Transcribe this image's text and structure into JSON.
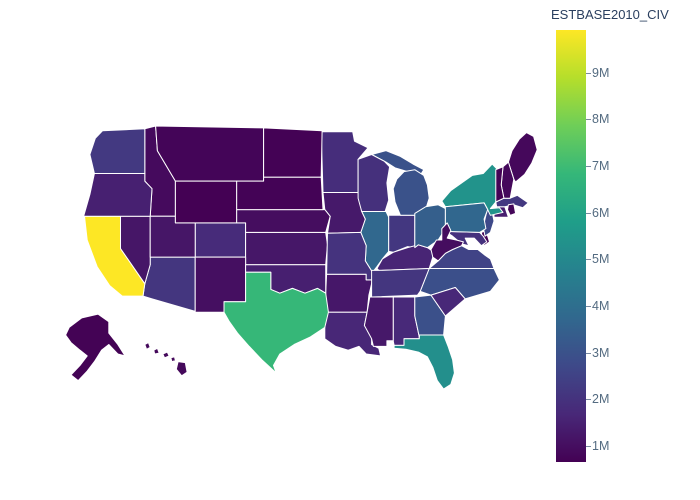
{
  "page": {
    "background": "#ffffff"
  },
  "chart_data": {
    "type": "choropleth",
    "title": "ESTBASE2010_CIV",
    "region": "USA states (albers-usa style layout, Alaska and Hawaii insets bottom-left)",
    "unit": "M",
    "zmin": 0.66,
    "zmax": 9.91,
    "colorscale_name": "Viridis",
    "colorscale": [
      [
        "0",
        "#440154"
      ],
      [
        "0.111",
        "#482878"
      ],
      [
        "0.222",
        "#3e4989"
      ],
      [
        "0.333",
        "#31688e"
      ],
      [
        "0.444",
        "#26828e"
      ],
      [
        "0.556",
        "#1f9e89"
      ],
      [
        "0.667",
        "#35b779"
      ],
      [
        "0.778",
        "#6ece58"
      ],
      [
        "0.889",
        "#b5de2b"
      ],
      [
        "1",
        "#fde725"
      ]
    ],
    "colorbar": {
      "ticks": [
        {
          "label": "1M",
          "value": 1
        },
        {
          "label": "2M",
          "value": 2
        },
        {
          "label": "3M",
          "value": 3
        },
        {
          "label": "4M",
          "value": 4
        },
        {
          "label": "5M",
          "value": 5
        },
        {
          "label": "6M",
          "value": 6
        },
        {
          "label": "7M",
          "value": 7
        },
        {
          "label": "8M",
          "value": 8
        },
        {
          "label": "9M",
          "value": 9
        }
      ]
    },
    "border_color": "#ffffff",
    "states": [
      {
        "abbr": "AL",
        "name": "Alabama",
        "value_m": 1.72
      },
      {
        "abbr": "AK",
        "name": "Alaska",
        "value_m": 0.7
      },
      {
        "abbr": "AZ",
        "name": "Arizona",
        "value_m": 2.13
      },
      {
        "abbr": "AR",
        "name": "Arkansas",
        "value_m": 1.25
      },
      {
        "abbr": "CA",
        "name": "California",
        "value_m": 9.91
      },
      {
        "abbr": "CO",
        "name": "Colorado",
        "value_m": 1.79
      },
      {
        "abbr": "CT",
        "name": "Connecticut",
        "value_m": 1.42
      },
      {
        "abbr": "DE",
        "name": "Delaware",
        "value_m": 0.74
      },
      {
        "abbr": "FL",
        "name": "Florida",
        "value_m": 5.26
      },
      {
        "abbr": "GA",
        "name": "Georgia",
        "value_m": 2.96
      },
      {
        "abbr": "HI",
        "name": "Hawaii",
        "value_m": 0.86
      },
      {
        "abbr": "ID",
        "name": "Idaho",
        "value_m": 0.91
      },
      {
        "abbr": "IL",
        "name": "Illinois",
        "value_m": 3.75
      },
      {
        "abbr": "IN",
        "name": "Indiana",
        "value_m": 2.15
      },
      {
        "abbr": "IA",
        "name": "Iowa",
        "value_m": 1.29
      },
      {
        "abbr": "KS",
        "name": "Kansas",
        "value_m": 1.24
      },
      {
        "abbr": "KY",
        "name": "Kentucky",
        "value_m": 1.61
      },
      {
        "abbr": "LA",
        "name": "Louisiana",
        "value_m": 1.66
      },
      {
        "abbr": "ME",
        "name": "Maine",
        "value_m": 0.85
      },
      {
        "abbr": "MD",
        "name": "Maryland",
        "value_m": 1.97
      },
      {
        "abbr": "MA",
        "name": "Massachusetts",
        "value_m": 2.17
      },
      {
        "abbr": "MI",
        "name": "Michigan",
        "value_m": 3.01
      },
      {
        "abbr": "MN",
        "name": "Minnesota",
        "value_m": 1.85
      },
      {
        "abbr": "MS",
        "name": "Mississippi",
        "value_m": 1.27
      },
      {
        "abbr": "MO",
        "name": "Missouri",
        "value_m": 2.03
      },
      {
        "abbr": "MT",
        "name": "Montana",
        "value_m": 0.77
      },
      {
        "abbr": "NE",
        "name": "Nebraska",
        "value_m": 0.98
      },
      {
        "abbr": "NV",
        "name": "Nevada",
        "value_m": 1.2
      },
      {
        "abbr": "NH",
        "name": "New Hampshire",
        "value_m": 0.85
      },
      {
        "abbr": "NJ",
        "name": "New Jersey",
        "value_m": 2.73
      },
      {
        "abbr": "NM",
        "name": "New Mexico",
        "value_m": 1.04
      },
      {
        "abbr": "NY",
        "name": "New York",
        "value_m": 5.4
      },
      {
        "abbr": "NC",
        "name": "North Carolina",
        "value_m": 2.92
      },
      {
        "abbr": "ND",
        "name": "North Dakota",
        "value_m": 0.69
      },
      {
        "abbr": "OH",
        "name": "Ohio",
        "value_m": 3.43
      },
      {
        "abbr": "OK",
        "name": "Oklahoma",
        "value_m": 1.46
      },
      {
        "abbr": "OR",
        "name": "Oregon",
        "value_m": 1.48
      },
      {
        "abbr": "PA",
        "name": "Pennsylvania",
        "value_m": 3.72
      },
      {
        "abbr": "RI",
        "name": "Rhode Island",
        "value_m": 0.78
      },
      {
        "abbr": "SC",
        "name": "South Carolina",
        "value_m": 1.68
      },
      {
        "abbr": "SD",
        "name": "South Dakota",
        "value_m": 0.72
      },
      {
        "abbr": "TN",
        "name": "Tennessee",
        "value_m": 2.12
      },
      {
        "abbr": "TX",
        "name": "Texas",
        "value_m": 6.85
      },
      {
        "abbr": "UT",
        "name": "Utah",
        "value_m": 1.21
      },
      {
        "abbr": "VT",
        "name": "Vermont",
        "value_m": 0.68
      },
      {
        "abbr": "VA",
        "name": "Virginia",
        "value_m": 2.53
      },
      {
        "abbr": "WA",
        "name": "Washington",
        "value_m": 2.21
      },
      {
        "abbr": "WV",
        "name": "West Virginia",
        "value_m": 0.98
      },
      {
        "abbr": "WI",
        "name": "Wisconsin",
        "value_m": 1.95
      },
      {
        "abbr": "WY",
        "name": "Wyoming",
        "value_m": 0.66
      }
    ]
  }
}
